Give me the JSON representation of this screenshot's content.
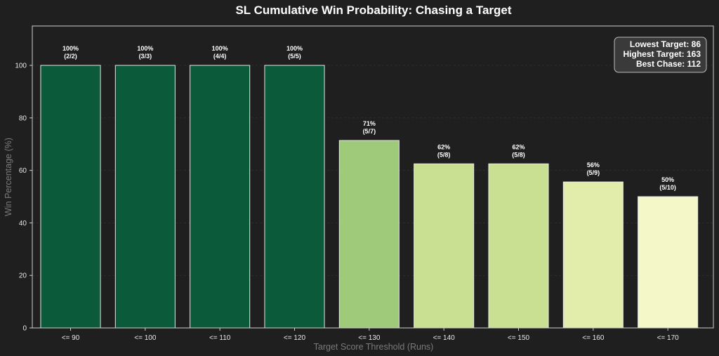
{
  "chart_data": {
    "type": "bar",
    "title": "SL Cumulative Win Probability: Chasing a Target",
    "xlabel": "Target Score Threshold (Runs)",
    "ylabel": "Win Percentage (%)",
    "ylim": [
      0,
      115
    ],
    "yticks": [
      0,
      20,
      40,
      60,
      80,
      100
    ],
    "grid": true,
    "categories": [
      "<= 90",
      "<= 100",
      "<= 110",
      "<= 120",
      "<= 130",
      "<= 140",
      "<= 150",
      "<= 160",
      "<= 170"
    ],
    "values": [
      100,
      100,
      100,
      100,
      71.4,
      62.5,
      62.5,
      55.6,
      50
    ],
    "value_labels": [
      "100%",
      "100%",
      "100%",
      "100%",
      "71%",
      "62%",
      "62%",
      "56%",
      "50%"
    ],
    "count_labels": [
      "(2/2)",
      "(3/3)",
      "(4/4)",
      "(5/5)",
      "(5/7)",
      "(5/8)",
      "(5/8)",
      "(5/9)",
      "(5/10)"
    ],
    "bar_colors": [
      "#0b5a39",
      "#0b5a39",
      "#0b5a39",
      "#0b5a39",
      "#9fca79",
      "#c9e092",
      "#c9e092",
      "#e2edac",
      "#f4f7c8"
    ],
    "info_box": {
      "position": "top-right",
      "lines": [
        "Lowest Target: 86",
        "Highest Target: 163",
        "Best Chase: 112"
      ]
    }
  }
}
